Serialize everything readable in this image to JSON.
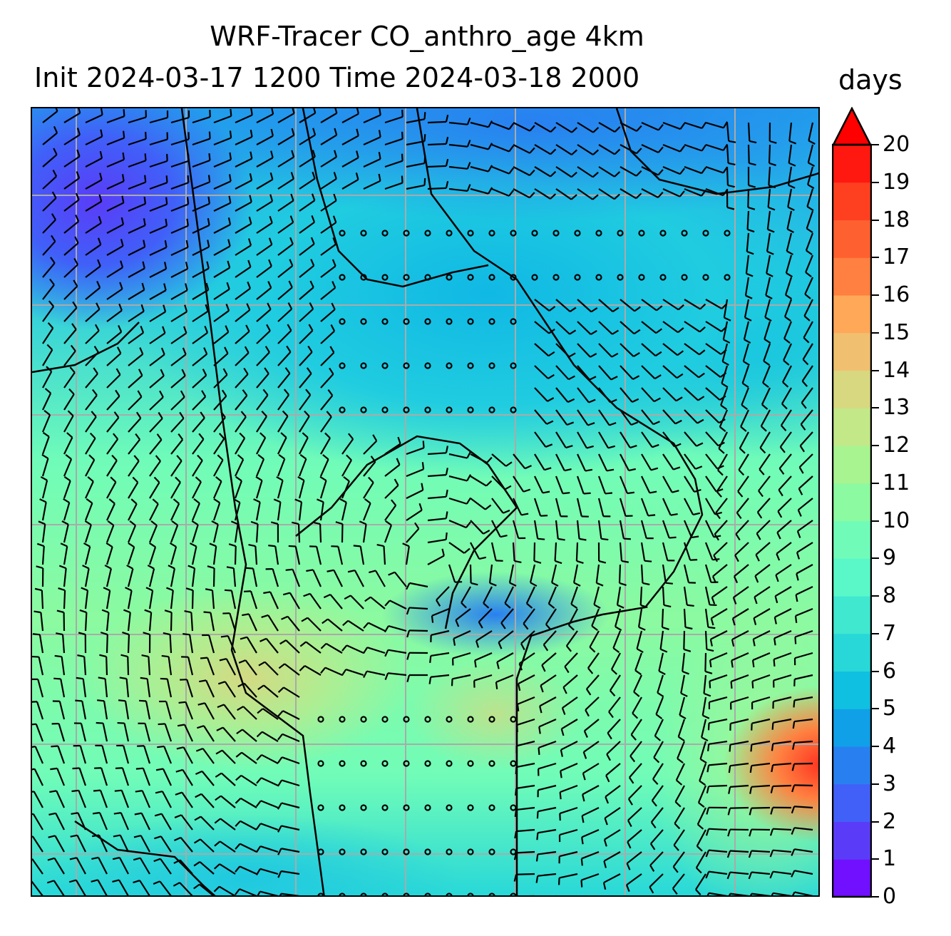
{
  "title": {
    "line1": "WRF-Tracer CO_anthro_age 4km",
    "line2": "Init 2024-03-17 1200 Time 2024-03-18 2000",
    "units": "days"
  },
  "colorbar": {
    "min": 0,
    "max": 20,
    "extend": "max",
    "tick_labels": [
      "0",
      "1",
      "2",
      "3",
      "4",
      "5",
      "6",
      "7",
      "8",
      "9",
      "10",
      "11",
      "12",
      "13",
      "14",
      "15",
      "16",
      "17",
      "18",
      "19",
      "20"
    ],
    "colors": [
      "#7010ff",
      "#5a3cf8",
      "#4060f8",
      "#2880f0",
      "#10a0e8",
      "#10c0e0",
      "#28d8d8",
      "#40e8d0",
      "#5af8c8",
      "#70fcb8",
      "#8cfaa0",
      "#a8f490",
      "#c2e888",
      "#d8d880",
      "#f0c070",
      "#ffa858",
      "#ff8040",
      "#ff6030",
      "#ff4020",
      "#ff1810"
    ],
    "extend_color": "#ff0000"
  }
}
